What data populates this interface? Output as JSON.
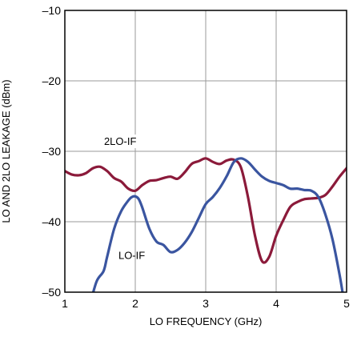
{
  "chart_data": {
    "type": "line",
    "title": "",
    "xlabel": "LO FREQUENCY (GHz)",
    "ylabel": "LO AND 2LO LEAKAGE (dBm)",
    "xlim": [
      1,
      5
    ],
    "ylim": [
      -50,
      -10
    ],
    "x_ticks": [
      "1",
      "2",
      "3",
      "4",
      "5"
    ],
    "y_ticks": [
      "–10",
      "–20",
      "–30",
      "–40",
      "–50"
    ],
    "grid": true,
    "series": [
      {
        "name": "2LO-IF",
        "color": "#8b1a3a",
        "x": [
          1.0,
          1.1,
          1.2,
          1.3,
          1.4,
          1.5,
          1.6,
          1.7,
          1.8,
          1.9,
          2.0,
          2.1,
          2.2,
          2.3,
          2.4,
          2.5,
          2.6,
          2.7,
          2.8,
          2.9,
          3.0,
          3.1,
          3.2,
          3.3,
          3.4,
          3.5,
          3.6,
          3.7,
          3.8,
          3.9,
          4.0,
          4.1,
          4.2,
          4.3,
          4.4,
          4.5,
          4.6,
          4.7,
          4.8,
          4.9,
          5.0
        ],
        "values": [
          -32.8,
          -33.3,
          -33.4,
          -33.1,
          -32.4,
          -32.2,
          -32.8,
          -33.8,
          -34.3,
          -35.3,
          -35.6,
          -34.8,
          -34.2,
          -34.1,
          -33.8,
          -33.6,
          -33.9,
          -33.0,
          -31.8,
          -31.4,
          -31.0,
          -31.5,
          -31.8,
          -31.3,
          -31.2,
          -32.3,
          -36.5,
          -42.0,
          -45.6,
          -45.0,
          -42.0,
          -39.8,
          -37.9,
          -37.2,
          -36.8,
          -36.7,
          -36.6,
          -36.2,
          -35.0,
          -33.6,
          -32.4
        ]
      },
      {
        "name": "LO-IF",
        "color": "#3a55a0",
        "x": [
          1.35,
          1.45,
          1.55,
          1.6,
          1.7,
          1.8,
          1.9,
          1.95,
          2.0,
          2.05,
          2.1,
          2.2,
          2.3,
          2.4,
          2.5,
          2.6,
          2.7,
          2.8,
          2.9,
          3.0,
          3.1,
          3.2,
          3.3,
          3.4,
          3.5,
          3.6,
          3.7,
          3.8,
          3.9,
          4.0,
          4.1,
          4.2,
          4.3,
          4.4,
          4.5,
          4.6,
          4.7,
          4.8,
          4.9,
          4.95
        ],
        "values": [
          -52.0,
          -48.5,
          -47.0,
          -45.0,
          -41.0,
          -38.5,
          -37.0,
          -36.5,
          -36.4,
          -36.8,
          -38.0,
          -41.0,
          -42.8,
          -43.3,
          -44.3,
          -44.0,
          -43.0,
          -41.5,
          -39.5,
          -37.5,
          -36.5,
          -35.2,
          -33.5,
          -31.5,
          -31.0,
          -31.5,
          -32.6,
          -33.6,
          -34.2,
          -34.5,
          -34.8,
          -35.3,
          -35.3,
          -35.5,
          -35.6,
          -36.5,
          -39.0,
          -42.5,
          -47.5,
          -50.5
        ]
      }
    ]
  }
}
